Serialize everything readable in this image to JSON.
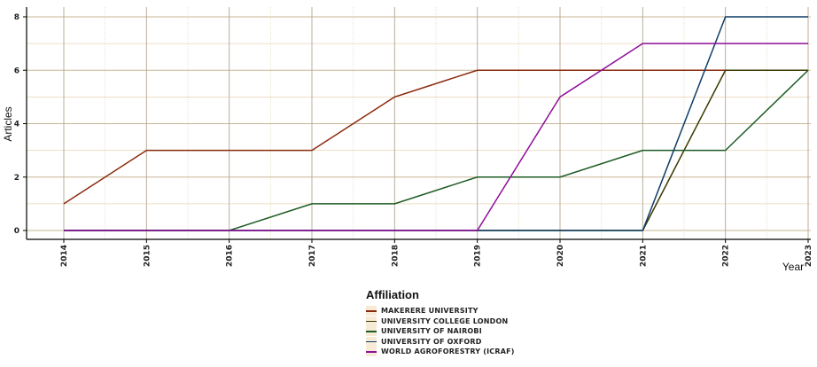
{
  "chart_data": {
    "type": "line",
    "x": [
      "2014",
      "2015",
      "2016",
      "2017",
      "2018",
      "2019",
      "2020",
      "2021",
      "2022",
      "2023"
    ],
    "ylabel": "Articles",
    "xlabel": "Year",
    "ylim": [
      0,
      8
    ],
    "yticks": [
      "0",
      "2",
      "4",
      "6",
      "8"
    ],
    "grid": true,
    "legend_title": "Affiliation",
    "legend_position": "bottom",
    "series": [
      {
        "name": "MAKERERE UNIVERSITY",
        "color": "#8b2a0e",
        "values": [
          1,
          3,
          3,
          3,
          5,
          6,
          6,
          6,
          6,
          6
        ]
      },
      {
        "name": "UNIVERSITY COLLEGE LONDON",
        "color": "#3a3a00",
        "values": [
          0,
          0,
          0,
          0,
          0,
          0,
          0,
          0,
          6,
          6
        ]
      },
      {
        "name": "UNIVERSITY OF NAIROBI",
        "color": "#1e5c24",
        "values": [
          0,
          0,
          0,
          1,
          1,
          2,
          2,
          3,
          3,
          6
        ]
      },
      {
        "name": "UNIVERSITY OF OXFORD",
        "color": "#0e3d66",
        "values": [
          0,
          0,
          0,
          0,
          0,
          0,
          0,
          0,
          8,
          8
        ]
      },
      {
        "name": "WORLD AGROFORESTRY (ICRAF)",
        "color": "#8e0f99",
        "values": [
          0,
          0,
          0,
          0,
          0,
          0,
          5,
          7,
          7,
          7
        ]
      }
    ]
  }
}
